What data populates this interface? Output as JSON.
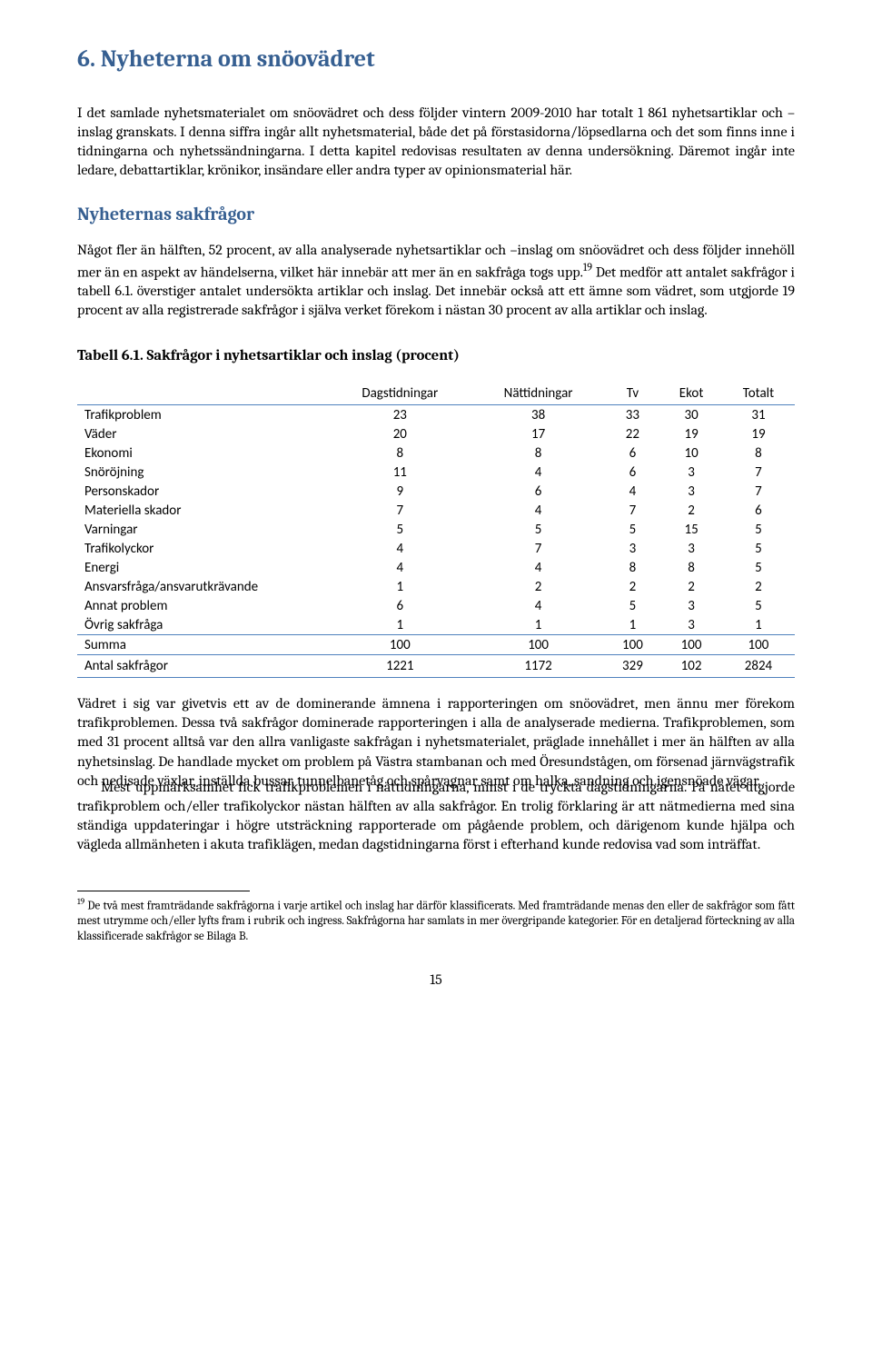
{
  "heading": "6. Nyheterna om snöovädret",
  "para1": "I det samlade nyhetsmaterialet om snöovädret och dess följder vintern 2009-2010 har totalt 1 861 nyhetsartiklar och –inslag granskats. I denna siffra ingår allt nyhetsmaterial, både det på förstasidorna/löpsedlarna och det som finns inne i tidningarna och nyhetssändningarna. I detta kapitel redovisas resultaten av denna undersökning. Däremot ingår inte ledare, debattartiklar, krönikor, insändare eller andra typer av opinionsmaterial här.",
  "subheading": "Nyheternas sakfrågor",
  "para2_part1": "Något fler än hälften, 52 procent, av alla analyserade nyhetsartiklar och –inslag om snöovädret och dess följder innehöll mer än en aspekt av händelserna, vilket här innebär att mer än en sakfråga togs upp.",
  "para2_sup": "19",
  "para2_part2": " Det medför att antalet sakfrågor i tabell 6.1. överstiger antalet undersökta artiklar och inslag. Det innebär också att ett ämne som vädret, som utgjorde 19 procent av alla registrerade sakfrågor i själva verket förekom i nästan 30 procent av alla artiklar och inslag.",
  "table_title": "Tabell 6.1. Sakfrågor i nyhetsartiklar och inslag (procent)",
  "table": {
    "headers": [
      "",
      "Dagstidningar",
      "Nättidningar",
      "Tv",
      "Ekot",
      "Totalt"
    ],
    "rows": [
      [
        "Trafikproblem",
        "23",
        "38",
        "33",
        "30",
        "31"
      ],
      [
        "Väder",
        "20",
        "17",
        "22",
        "19",
        "19"
      ],
      [
        "Ekonomi",
        "8",
        "8",
        "6",
        "10",
        "8"
      ],
      [
        "Snöröjning",
        "11",
        "4",
        "6",
        "3",
        "7"
      ],
      [
        "Personskador",
        "9",
        "6",
        "4",
        "3",
        "7"
      ],
      [
        "Materiella skador",
        "7",
        "4",
        "7",
        "2",
        "6"
      ],
      [
        "Varningar",
        "5",
        "5",
        "5",
        "15",
        "5"
      ],
      [
        "Trafikolyckor",
        "4",
        "7",
        "3",
        "3",
        "5"
      ],
      [
        "Energi",
        "4",
        "4",
        "8",
        "8",
        "5"
      ],
      [
        "Ansvarsfråga/ansvarutkrävande",
        "1",
        "2",
        "2",
        "2",
        "2"
      ],
      [
        "Annat problem",
        "6",
        "4",
        "5",
        "3",
        "5"
      ],
      [
        "Övrig sakfråga",
        "1",
        "1",
        "1",
        "3",
        "1"
      ]
    ],
    "sum_row": [
      "Summa",
      "100",
      "100",
      "100",
      "100",
      "100"
    ],
    "total_row": [
      "Antal sakfrågor",
      "1221",
      "1172",
      "329",
      "102",
      "2824"
    ]
  },
  "para3": "Vädret i sig var givetvis ett av de dominerande ämnena i rapporteringen om snöovädret, men ännu mer förekom trafikproblemen. Dessa två sakfrågor dominerade rapporteringen i alla de analyserade medierna. Trafikproblemen, som med 31 procent alltså var den allra vanligaste sakfrågan i nyhetsmaterialet, präglade innehållet i mer än hälften av alla nyhetsinslag. De handlade mycket om problem på Västra stambanan och med Öresundstågen, om försenad järnvägstrafik och nedisade växlar, inställda bussar, tunnelbanetåg och spårvagnar samt om halka, sandning och igensnöade vägar.",
  "para4": "Mest uppmärksamhet fick trafikproblemen i nättidningarna, minst i de tryckta dagstidningarna. På nätet utgjorde trafikproblem och/eller trafikolyckor nästan hälften av alla sakfrågor. En trolig förklaring är att nätmedierna med sina ständiga uppdateringar i högre utsträckning rapporterade om pågående problem, och därigenom kunde hjälpa och vägleda allmänheten i akuta trafiklägen, medan dagstidningarna först i efterhand kunde redovisa vad som inträffat.",
  "footnote_sup": "19",
  "footnote": " De två mest framträdande sakfrågorna i varje artikel och inslag har därför klassificerats. Med framträdande menas den eller de sakfrågor som fått mest utrymme och/eller lyfts fram i rubrik och ingress. Sakfrågorna har samlats in mer övergripande kategorier. För en detaljerad förteckning av alla klassificerade sakfrågor se Bilaga B.",
  "page_number": "15",
  "colors": {
    "heading_color": "#365f91",
    "table_border": "#4f81bd",
    "text_color": "#000000",
    "background": "#ffffff"
  }
}
